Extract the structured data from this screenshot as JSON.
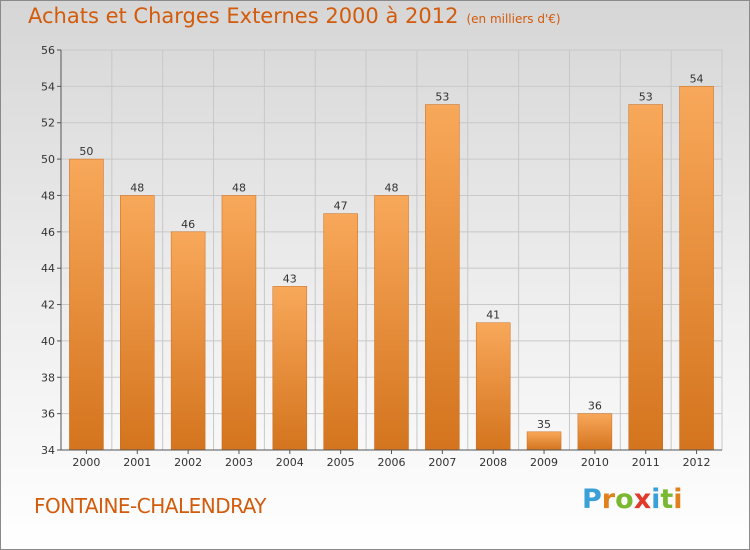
{
  "header": {
    "title": "Achats et Charges Externes 2000 à 2012",
    "subtitle": "(en milliers d'€)"
  },
  "footer": {
    "town": "FONTAINE-CHALENDRAY",
    "logo": {
      "letters": [
        "P",
        "r",
        "o",
        "x",
        "i",
        "t",
        "i"
      ],
      "colors": [
        "#3aa0d8",
        "#e0811e",
        "#7ab830",
        "#e03a2a",
        "#3aa0d8",
        "#7ab830",
        "#e0811e"
      ]
    }
  },
  "chart_data": {
    "type": "bar",
    "title": "Achats et Charges Externes 2000 à 2012",
    "subtitle": "(en milliers d'€)",
    "xlabel": "",
    "ylabel": "",
    "categories": [
      "2000",
      "2001",
      "2002",
      "2003",
      "2004",
      "2005",
      "2006",
      "2007",
      "2008",
      "2009",
      "2010",
      "2011",
      "2012"
    ],
    "values": [
      50,
      48,
      46,
      48,
      43,
      47,
      48,
      53,
      41,
      35,
      36,
      53,
      54
    ],
    "ylim": [
      34,
      56
    ],
    "yticks": [
      34,
      36,
      38,
      40,
      42,
      44,
      46,
      48,
      50,
      52,
      54,
      56
    ],
    "grid": true,
    "colors": {
      "bar_light": "#f8a85a",
      "bar_dark": "#d4741e",
      "bar_border": "#c86a1a",
      "grid": "#c8c8c8",
      "axis": "#555555",
      "text": "#333333"
    }
  }
}
